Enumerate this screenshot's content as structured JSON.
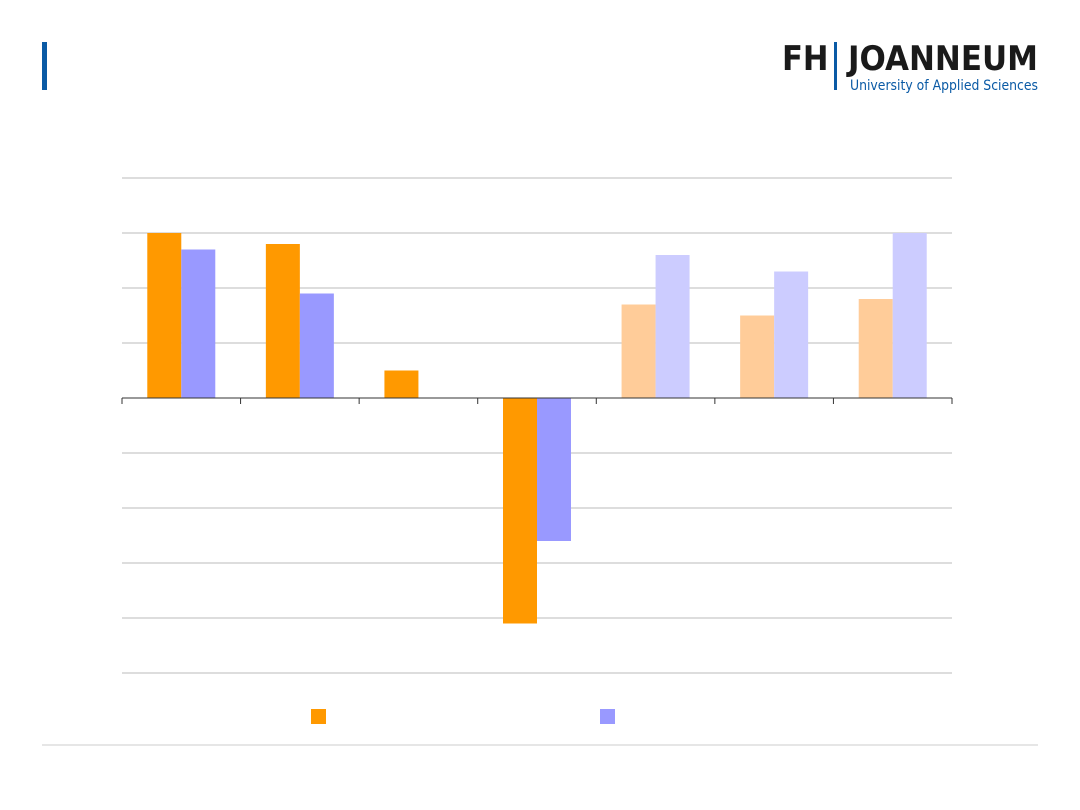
{
  "logo": {
    "left": "FH",
    "right": "JOANNEUM",
    "tagline": "University of Applied Sciences"
  },
  "chart_data": {
    "type": "bar",
    "categories": [
      null,
      null,
      null,
      null,
      null,
      null,
      null
    ],
    "series": [
      {
        "color": "#ff9900",
        "colors": [
          "#ff9900",
          "#ff9900",
          "#ff9900",
          "#ff9900",
          "#ffcc99",
          "#ffcc99",
          "#ffcc99"
        ],
        "values": [
          3.0,
          2.8,
          0.5,
          -4.1,
          1.7,
          1.5,
          1.8
        ]
      },
      {
        "color": "#9999ff",
        "colors": [
          "#9999ff",
          "#9999ff",
          "#9999ff",
          "#9999ff",
          "#ccccff",
          "#ccccff",
          "#ccccff"
        ],
        "values": [
          2.7,
          1.9,
          null,
          -2.6,
          2.6,
          2.3,
          3.0
        ]
      }
    ],
    "ylim": [
      -5,
      4
    ],
    "yticks": [
      -5,
      -4,
      -3,
      -2,
      -1,
      0,
      1,
      2,
      3,
      4
    ],
    "grid": true,
    "legend": "bottom"
  }
}
